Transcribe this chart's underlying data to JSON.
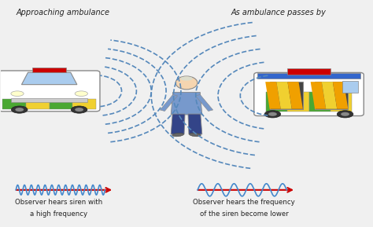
{
  "bg_color": "#f0f0f0",
  "left_label": "Approaching ambulance",
  "right_label": "As ambulance passes by",
  "bottom_left_line1": "Observer hears siren with",
  "bottom_left_line2": "a high frequency",
  "bottom_right_line1": "Observer hears the frequency",
  "bottom_right_line2": "of the siren become lower",
  "wave_color_high": "#4488cc",
  "wave_color_low": "#4488cc",
  "arrow_color": "#cc0000",
  "arc_color": "#5588bb"
}
